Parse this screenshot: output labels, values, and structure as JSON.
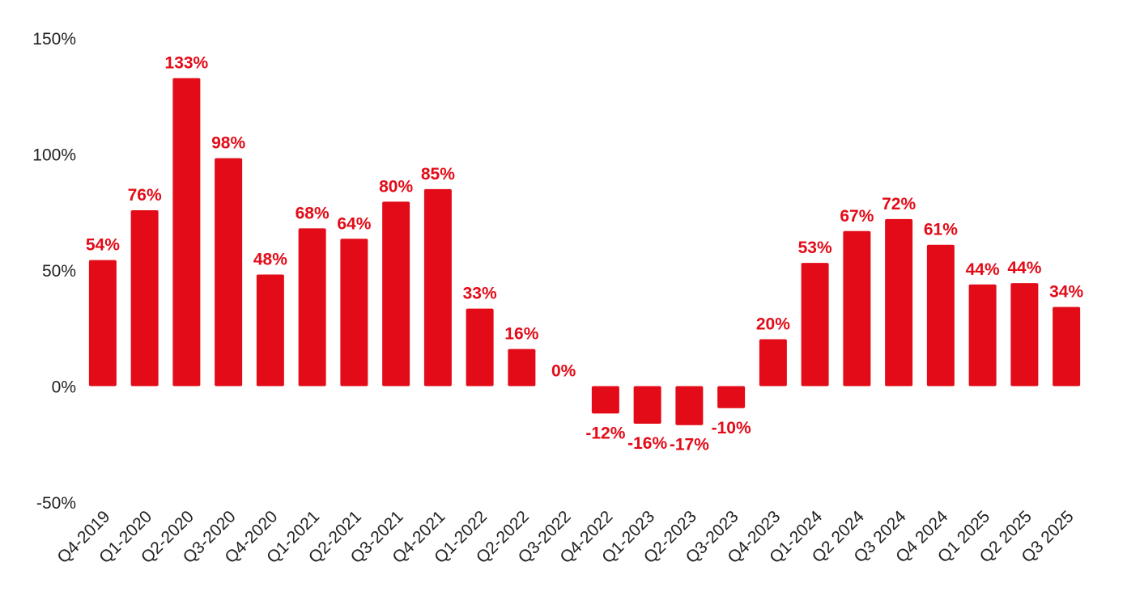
{
  "chart_data": {
    "type": "bar",
    "title": "",
    "xlabel": "",
    "ylabel": "",
    "ylim": [
      -50,
      150
    ],
    "yticks": [
      150,
      100,
      50,
      0,
      -50
    ],
    "ytick_labels": [
      "150%",
      "100%",
      "50%",
      "0%",
      "-50%"
    ],
    "grid": false,
    "bar_color": "#e30b17",
    "label_color": "#e30b17",
    "categories": [
      "Q4-2019",
      "Q1-2020",
      "Q2-2020",
      "Q3-2020",
      "Q4-2020",
      "Q1-2021",
      "Q2-2021",
      "Q3-2021",
      "Q4-2021",
      "Q1-2022",
      "Q2-2022",
      "Q3-2022",
      "Q4-2022",
      "Q1-2023",
      "Q2-2023",
      "Q3-2023",
      "Q4-2023",
      "Q1-2024",
      "Q2 2024",
      "Q3 2024",
      "Q4 2024",
      "Q1 2025",
      "Q2 2025",
      "Q3 2025"
    ],
    "values": [
      54.3,
      75.8,
      132.7,
      98.2,
      48.1,
      68.0,
      63.5,
      79.5,
      84.9,
      33.4,
      16.0,
      0,
      -11.8,
      -16.2,
      -16.8,
      -9.5,
      20.2,
      53.1,
      66.8,
      72.0,
      60.9,
      43.8,
      44.4,
      34.1
    ],
    "data_labels": [
      "54%",
      "76%",
      "133%",
      "98%",
      "48%",
      "68%",
      "64%",
      "80%",
      "85%",
      "33%",
      "16%",
      "0%",
      "-12%",
      "-16%",
      "-17%",
      "-10%",
      "20%",
      "53%",
      "67%",
      "72%",
      "61%",
      "44%",
      "44%",
      "34%"
    ]
  }
}
